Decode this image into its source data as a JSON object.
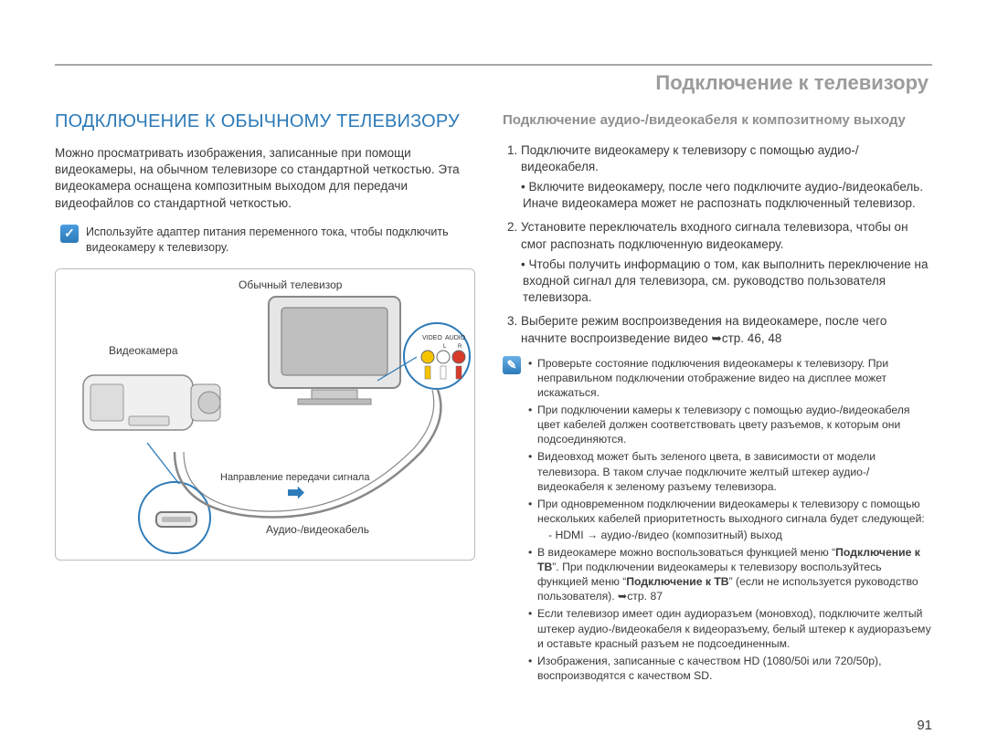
{
  "header": {
    "title": "Подключение к телевизору"
  },
  "left": {
    "section_title": "ПОДКЛЮЧЕНИЕ К ОБЫЧНОМУ ТЕЛЕВИЗОРУ",
    "intro": "Можно просматривать изображения, записанные при помощи видеокамеры, на обычном телевизоре со стандартной четкостью. Эта видеокамера оснащена композитным выходом для передачи видеофайлов со стандартной четкостью.",
    "note_icon_glyph": "✓",
    "note": "Используйте адаптер питания переменного тока, чтобы подключить видеокамеру к телевизору.",
    "diagram": {
      "tv_label": "Обычный телевизор",
      "camcorder_label": "Видеокамера",
      "signal_label": "Направление передачи сигнала",
      "cable_label": "Аудио-/видеокабель",
      "video_label": "VIDEO",
      "audio_label": "AUDIO",
      "lr_label_l": "L",
      "lr_label_r": "R"
    }
  },
  "right": {
    "subsection_title": "Подключение аудио-/видеокабеля к композитному выходу",
    "steps": [
      {
        "text": "Подключите видеокамеру к телевизору с помощью аудио-/видеокабеля.",
        "sub": [
          "Включите видеокамеру, после чего подключите аудио-/видеокабель. Иначе видеокамера может не распознать подключенный телевизор."
        ]
      },
      {
        "text": "Установите переключатель входного сигнала телевизора, чтобы он смог распознать подключенную видеокамеру.",
        "sub": [
          "Чтобы получить информацию о том, как выполнить переключение на входной сигнал для телевизора, см. руководство пользователя телевизора."
        ]
      },
      {
        "text": "Выберите режим воспроизведения на видеокамере, после чего начните воспроизведение видео ➥стр. 46, 48",
        "sub": []
      }
    ],
    "tips_icon_glyph": "✎",
    "tips": [
      {
        "text": "Проверьте состояние подключения видеокамеры к телевизору. При неправильном подключении отображение видео на дисплее может искажаться."
      },
      {
        "text": "При подключении камеры к телевизору с помощью аудио-/видеокабеля цвет кабелей должен соответствовать цвету разъемов, к которым они подсоединяются."
      },
      {
        "text": "Видеовход может быть зеленого цвета, в зависимости от модели телевизора. В таком случае подключите желтый штекер аудио-/видеокабеля к зеленому разъему телевизора."
      },
      {
        "text": "При одновременном подключении видеокамеры к телевизору с помощью нескольких кабелей приоритетность выходного сигнала будет следующей:",
        "sub": [
          "HDMI → аудио-/видео (композитный) выход"
        ]
      },
      {
        "text_html": "В видеокамере можно воспользоваться функцией меню “<b>Подключение к ТВ</b>”. При подключении видеокамеры к телевизору воспользуйтесь функцией меню “<b>Подключение к ТВ</b>” (если не используется руководство пользователя). ➥стр. 87"
      },
      {
        "text": "Если телевизор имеет один аудиоразъем (моновход), подключите желтый штекер аудио-/видеокабеля к видеоразъему, белый штекер к аудиоразъему и оставьте красный разъем не подсоединенным."
      },
      {
        "text": "Изображения, записанные с качеством HD (1080/50i или 720/50p), воспроизводятся с качеством SD."
      }
    ]
  },
  "page_number": "91",
  "colors": {
    "accent_blue": "#2c7ab8",
    "header_gray": "#9c9c9c",
    "text": "#3a3a3a",
    "border_gray": "#bdbdbd",
    "rca_yellow": "#f5c400",
    "rca_white": "#ffffff",
    "rca_red": "#d83a2a"
  }
}
